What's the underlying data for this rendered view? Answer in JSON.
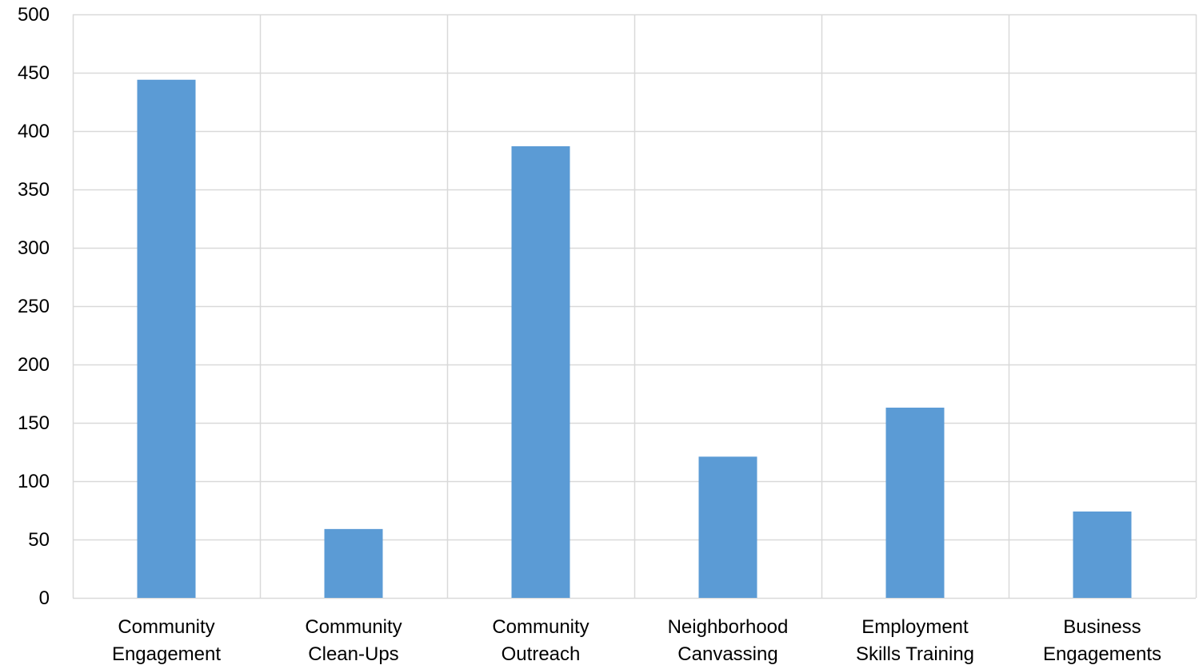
{
  "chart_data": {
    "type": "bar",
    "title": "",
    "xlabel": "",
    "ylabel": "",
    "ylim": [
      0,
      500
    ],
    "yticks": [
      0,
      50,
      100,
      150,
      200,
      250,
      300,
      350,
      400,
      450,
      500
    ],
    "grid": true,
    "legend": "none",
    "bar_color": "#5b9bd5",
    "grid_color": "#d9d9d9",
    "categories": [
      [
        "Community",
        "Engagement"
      ],
      [
        "Community",
        "Clean-Ups"
      ],
      [
        "Community",
        "Outreach"
      ],
      [
        "Neighborhood",
        "Canvassing"
      ],
      [
        "Employment",
        "Skills Training"
      ],
      [
        "Business",
        "Engagements"
      ]
    ],
    "values": [
      444,
      59,
      387,
      121,
      163,
      74
    ]
  }
}
